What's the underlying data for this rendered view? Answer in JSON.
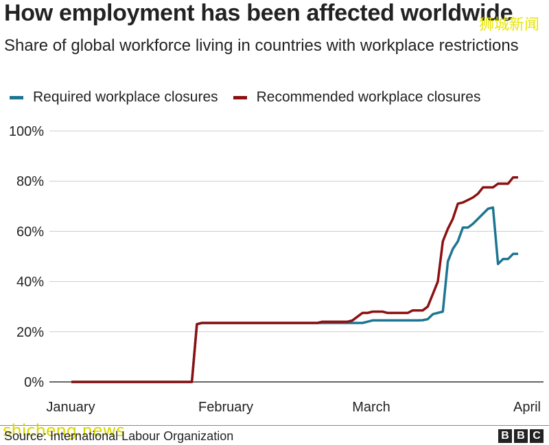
{
  "title": "How employment has been affected worldwide",
  "subtitle": "Share of global workforce living in countries with workplace restrictions",
  "watermark_cn": "狮城新闻",
  "watermark_en": "shicheng.news",
  "source": "Source: International Labour Organization",
  "logo": {
    "letters": [
      "B",
      "B",
      "C"
    ]
  },
  "colors": {
    "required": "#1c7592",
    "recommended": "#8c1010",
    "grid": "#cccccc",
    "axis": "#333333"
  },
  "chart_data": {
    "type": "line",
    "title": "How employment has been affected worldwide",
    "subtitle": "Share of global workforce living in countries with workplace restrictions",
    "x_tick_labels": [
      "January",
      "February",
      "March",
      "April"
    ],
    "x_unit": "day of year",
    "x_ticks": [
      1,
      32,
      61,
      92
    ],
    "xlim": [
      1,
      91
    ],
    "ylim": [
      0,
      100
    ],
    "y_ticks": [
      0,
      20,
      40,
      60,
      80,
      100
    ],
    "y_tick_labels": [
      "0%",
      "20%",
      "40%",
      "60%",
      "80%",
      "100%"
    ],
    "grid": true,
    "legend_position": "top-left",
    "series": [
      {
        "name": "Required workplace closures",
        "color": "#1c7592",
        "x": [
          1,
          25,
          26,
          27,
          58,
          59,
          60,
          61,
          68,
          70,
          71,
          72,
          73,
          75,
          76,
          77,
          78,
          79,
          80,
          81,
          82,
          84,
          85,
          86,
          87,
          88,
          89,
          90
        ],
        "y": [
          0,
          0,
          23,
          23.5,
          23.5,
          23.5,
          24,
          24.5,
          24.5,
          24.5,
          24.6,
          25,
          27,
          28,
          48,
          53,
          56,
          61.5,
          61.5,
          63,
          65,
          69,
          69.5,
          47,
          49,
          49,
          51,
          51
        ]
      },
      {
        "name": "Recommended workplace closures",
        "color": "#8c1010",
        "x": [
          1,
          25,
          26,
          27,
          50,
          51,
          56,
          57,
          58,
          59,
          60,
          61,
          62,
          63,
          64,
          65,
          66,
          67,
          68,
          69,
          70,
          71,
          72,
          73,
          74,
          75,
          76,
          77,
          78,
          79,
          80,
          81,
          82,
          83,
          84,
          85,
          86,
          87,
          88,
          89,
          90
        ],
        "y": [
          0,
          0,
          23,
          23.5,
          23.5,
          24,
          24,
          24.5,
          26,
          27.5,
          27.5,
          28,
          28,
          28,
          27.5,
          27.5,
          27.5,
          27.5,
          27.5,
          28.5,
          28.5,
          28.5,
          30,
          35,
          40,
          56,
          61,
          65,
          71,
          71.5,
          72.5,
          73.5,
          75,
          77.5,
          77.5,
          77.5,
          79,
          79,
          79,
          81.5,
          81.5
        ]
      }
    ]
  }
}
